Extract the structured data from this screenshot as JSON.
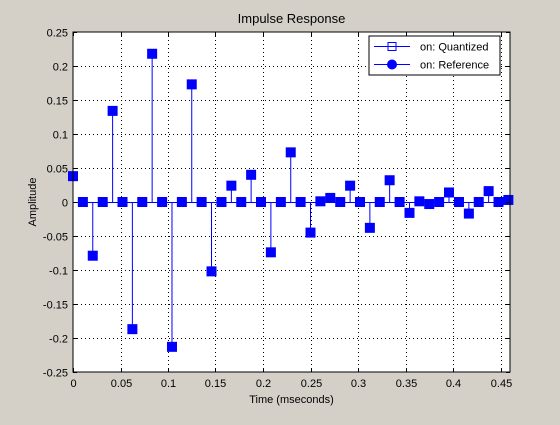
{
  "figure": {
    "background_color": "#d4d0c8"
  },
  "chart_data": {
    "type": "stem",
    "title": "Impulse Response",
    "xlabel": "Time (mseconds)",
    "ylabel": "Amplitude",
    "xlim": [
      0,
      0.46
    ],
    "ylim": [
      -0.25,
      0.25
    ],
    "x_ticks": [
      0,
      0.05,
      0.1,
      0.15,
      0.2,
      0.25,
      0.3,
      0.35,
      0.4,
      0.45
    ],
    "x_tick_labels": [
      "0",
      "0.05",
      "0.1",
      "0.15",
      "0.2",
      "0.25",
      "0.3",
      "0.35",
      "0.4",
      "0.45"
    ],
    "y_ticks": [
      -0.25,
      -0.2,
      -0.15,
      -0.1,
      -0.05,
      0,
      0.05,
      0.1,
      0.15,
      0.2,
      0.25
    ],
    "y_tick_labels": [
      "-0.25",
      "-0.2",
      "-0.15",
      "-0.1",
      "-0.05",
      "0",
      "0.05",
      "0.1",
      "0.15",
      "0.2",
      "0.25"
    ],
    "grid": true,
    "legend_position": "top-right",
    "line_color": "#0000ff",
    "x": [
      0,
      0.0104,
      0.0208,
      0.0313,
      0.0417,
      0.0521,
      0.0625,
      0.0729,
      0.0833,
      0.0938,
      0.1042,
      0.1146,
      0.125,
      0.1354,
      0.1458,
      0.1563,
      0.1667,
      0.1771,
      0.1875,
      0.1979,
      0.2083,
      0.2188,
      0.2292,
      0.2396,
      0.25,
      0.2604,
      0.2708,
      0.2813,
      0.2917,
      0.3021,
      0.3125,
      0.3229,
      0.3333,
      0.3438,
      0.3542,
      0.3646,
      0.375,
      0.3854,
      0.3958,
      0.4063,
      0.4167,
      0.4271,
      0.4375,
      0.4479,
      0.4583
    ],
    "series": [
      {
        "name": "on: Quantized",
        "marker": "square",
        "values": [
          0.038,
          0,
          -0.079,
          0,
          0.134,
          0,
          -0.187,
          0,
          0.218,
          0,
          -0.213,
          0,
          0.173,
          0,
          -0.102,
          0,
          0.024,
          0,
          0.04,
          0,
          -0.074,
          0,
          0.073,
          0,
          -0.045,
          0.001,
          0.006,
          0,
          0.024,
          0,
          -0.038,
          0,
          0.032,
          0,
          -0.016,
          0.001,
          -0.003,
          0,
          0.014,
          0,
          -0.017,
          0,
          0.016,
          0,
          0.003
        ]
      },
      {
        "name": "on: Reference",
        "marker": "circle",
        "values": [
          0.038,
          0,
          -0.079,
          0,
          0.134,
          0,
          -0.187,
          0,
          0.218,
          0,
          -0.213,
          0,
          0.173,
          0,
          -0.102,
          0,
          0.024,
          0,
          0.04,
          0,
          -0.074,
          0,
          0.073,
          0,
          -0.045,
          0.001,
          0.006,
          0,
          0.024,
          0,
          -0.038,
          0,
          0.032,
          0,
          -0.016,
          0.001,
          -0.003,
          0,
          0.014,
          0,
          -0.017,
          0,
          0.016,
          0,
          0.003
        ]
      }
    ]
  }
}
